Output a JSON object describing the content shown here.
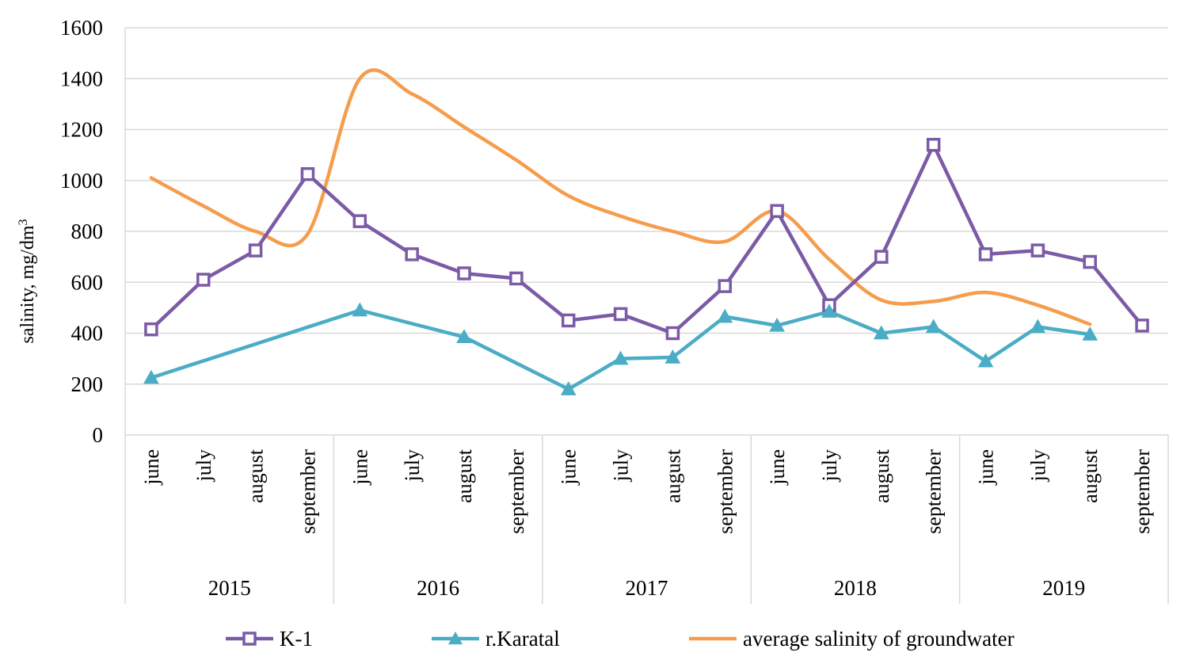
{
  "chart_data": {
    "type": "line",
    "title": "",
    "ylabel": "salinity, mg/dm",
    "ylabel_superscript": "3",
    "xlabel": "",
    "ylim": [
      0,
      1600
    ],
    "yticks": [
      0,
      200,
      400,
      600,
      800,
      1000,
      1200,
      1400,
      1600
    ],
    "grid": true,
    "legend_position": "bottom",
    "groups": [
      {
        "year": "2015",
        "months": [
          "june",
          "july",
          "august",
          "september"
        ]
      },
      {
        "year": "2016",
        "months": [
          "june",
          "july",
          "august",
          "september"
        ]
      },
      {
        "year": "2017",
        "months": [
          "june",
          "july",
          "august",
          "september"
        ]
      },
      {
        "year": "2018",
        "months": [
          "june",
          "july",
          "august",
          "september"
        ]
      },
      {
        "year": "2019",
        "months": [
          "june",
          "july",
          "august",
          "september"
        ]
      }
    ],
    "series": [
      {
        "name": "K-1",
        "color": "#7b5ba6",
        "marker": "square",
        "smooth": false,
        "values": [
          415,
          610,
          725,
          1025,
          840,
          710,
          635,
          615,
          450,
          475,
          400,
          585,
          880,
          510,
          700,
          1140,
          710,
          725,
          680,
          430
        ]
      },
      {
        "name": "r.Karatal",
        "color": "#4aacc5",
        "marker": "triangle",
        "smooth": false,
        "values": [
          225,
          null,
          null,
          null,
          490,
          null,
          385,
          null,
          180,
          300,
          305,
          465,
          430,
          485,
          400,
          425,
          290,
          425,
          395,
          null
        ]
      },
      {
        "name": "average salinity of groundwater",
        "color": "#f59d4d",
        "marker": "none",
        "smooth": true,
        "values": [
          1010,
          900,
          800,
          790,
          1400,
          1340,
          1210,
          1080,
          940,
          860,
          800,
          760,
          880,
          690,
          530,
          525,
          560,
          510,
          435,
          null
        ]
      }
    ]
  }
}
